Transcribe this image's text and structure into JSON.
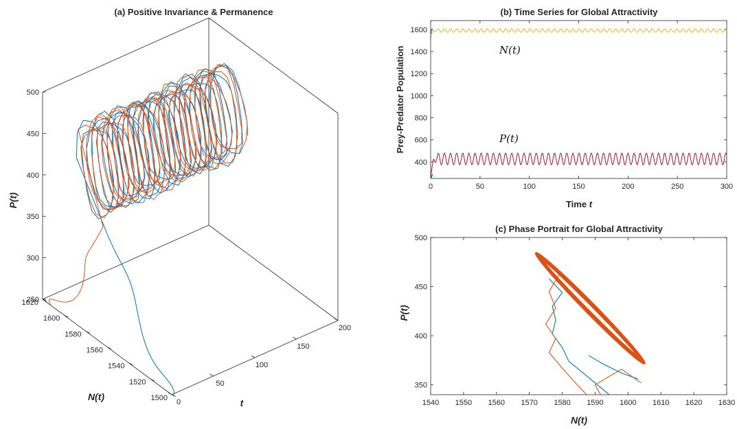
{
  "colors": {
    "blue": "#0072BD",
    "orange": "#D95319",
    "yellow": "#EDB120",
    "purple": "#7E2F8E",
    "wine": "#A2142F",
    "axis": "#262626"
  },
  "chart_data": [
    {
      "id": "a",
      "type": "line3d",
      "title": "(a) Positive Invariance & Permanence",
      "xlabel": "t",
      "ylabel": "N(t)",
      "zlabel": "P(t)",
      "xlim": [
        0,
        200
      ],
      "ylim": [
        1500,
        1620
      ],
      "zlim": [
        250,
        500
      ],
      "x_ticks": [
        0,
        50,
        100,
        150,
        200
      ],
      "y_ticks": [
        1500,
        1520,
        1540,
        1560,
        1580,
        1600,
        1620
      ],
      "z_ticks": [
        250,
        300,
        350,
        400,
        450,
        500
      ],
      "series": [
        {
          "color": "blue",
          "initial": [
            0,
            1500,
            250
          ],
          "settle": {
            "t_start": 20,
            "t_end": 185,
            "N_center": 1588,
            "N_amp": 16,
            "P_center": 427,
            "P_amp": 53,
            "period": 6.2,
            "phase": 0.0
          }
        },
        {
          "color": "orange",
          "initial": [
            0,
            1612,
            250
          ],
          "settle": {
            "t_start": 20,
            "t_end": 185,
            "N_center": 1588,
            "N_amp": 16,
            "P_center": 427,
            "P_amp": 53,
            "period": 6.2,
            "phase": 0.6
          }
        }
      ]
    },
    {
      "id": "b",
      "type": "line",
      "title": "(b) Time Series for Global Attractivity",
      "xlabel": "Time",
      "xlabel_var": "t",
      "ylabel": "Prey-Predator Population",
      "xlim": [
        0,
        300
      ],
      "ylim": [
        250,
        1680
      ],
      "x_ticks": [
        0,
        50,
        100,
        150,
        200,
        250,
        300
      ],
      "y_ticks": [
        400,
        600,
        800,
        1000,
        1200,
        1400,
        1600
      ],
      "annotations": [
        {
          "text": "N(t)",
          "x": 40,
          "y": 1470
        },
        {
          "text": "P(t)",
          "x": 40,
          "y": 560
        }
      ],
      "series": [
        {
          "name": "N(t)",
          "color": "yellow",
          "center": 1590,
          "amp": 16,
          "period": 6.2,
          "start_value": 1545
        },
        {
          "name": "P(t)",
          "color": "wine",
          "center": 427,
          "amp": 53,
          "period": 6.2,
          "start_value": 270
        }
      ]
    },
    {
      "id": "c",
      "type": "phase",
      "title": "(c) Phase Portrait for Global Attractivity",
      "xlabel": "N(t)",
      "ylabel": "P(t)",
      "xlim": [
        1540,
        1630
      ],
      "ylim": [
        340,
        500
      ],
      "x_ticks": [
        1540,
        1550,
        1560,
        1570,
        1580,
        1590,
        1600,
        1610,
        1620,
        1630
      ],
      "y_ticks": [
        350,
        400,
        450,
        500
      ],
      "limit_cycle": {
        "color": "orange",
        "N_center": 1588.5,
        "N_amp": 16,
        "P_center": 428,
        "P_amp": 54
      },
      "transients": [
        {
          "color": "blue",
          "points": [
            [
              1595,
              338
            ],
            [
              1590,
              352
            ],
            [
              1586,
              363
            ],
            [
              1582,
              374
            ],
            [
              1580,
              388
            ],
            [
              1577,
              402
            ],
            [
              1578,
              416
            ],
            [
              1577,
              430
            ],
            [
              1580,
              444
            ],
            [
              1576,
              458
            ]
          ]
        },
        {
          "color": "orange",
          "points": [
            [
              1588,
              338
            ],
            [
              1584,
              352
            ],
            [
              1580,
              367
            ],
            [
              1576,
              383
            ],
            [
              1578,
              397
            ],
            [
              1575,
              412
            ],
            [
              1578,
              428
            ],
            [
              1576,
              445
            ],
            [
              1579,
              462
            ]
          ]
        },
        {
          "color": "orange",
          "points": [
            [
              1592,
              338
            ],
            [
              1590,
              350
            ],
            [
              1594,
              358
            ],
            [
              1598,
              366
            ],
            [
              1604,
              352
            ]
          ]
        },
        {
          "color": "blue",
          "points": [
            [
              1603,
              356
            ],
            [
              1598,
              362
            ],
            [
              1592,
              372
            ],
            [
              1588,
              380
            ]
          ]
        }
      ]
    }
  ]
}
